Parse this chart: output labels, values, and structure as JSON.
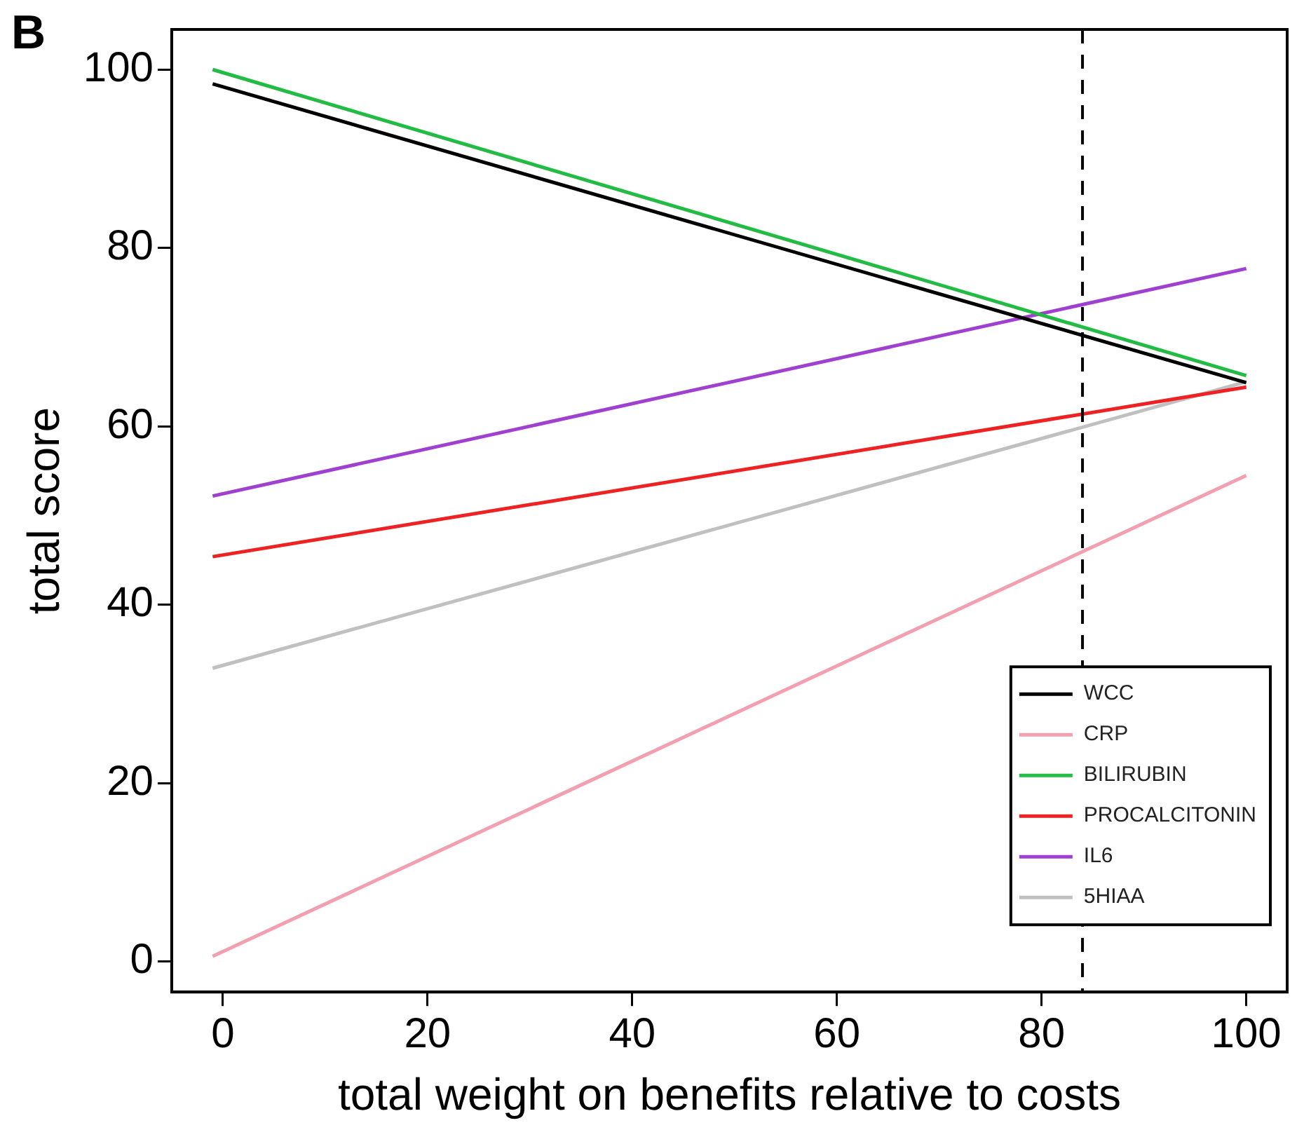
{
  "chart_data": {
    "type": "line",
    "title": "B",
    "xlabel": "total weight on benefits relative to costs",
    "ylabel": "total score",
    "xlim": [
      -5,
      104
    ],
    "ylim": [
      -3.4,
      104.5
    ],
    "xticks": [
      0,
      20,
      40,
      60,
      80,
      100
    ],
    "yticks": [
      0,
      20,
      40,
      60,
      80,
      100
    ],
    "grid": false,
    "legend": "bottom right",
    "marker": "none",
    "line_style": "solid",
    "x": [
      -1,
      100
    ],
    "ref_lines": [
      {
        "axis": "x",
        "value": 84,
        "color": "#000000",
        "line_style": "dashed"
      }
    ],
    "series": [
      {
        "name": "WCC",
        "color": "#000000",
        "values": [
          98.4,
          64.9
        ]
      },
      {
        "name": "CRP",
        "color": "#f2a0b0",
        "values": [
          0.6,
          54.5
        ]
      },
      {
        "name": "BILIRUBIN",
        "color": "#22bb44",
        "values": [
          100,
          65.7
        ]
      },
      {
        "name": "PROCALCITONIN",
        "color": "#ee2222",
        "values": [
          45.4,
          64.4
        ]
      },
      {
        "name": "IL6",
        "color": "#a040d0",
        "values": [
          52.2,
          77.7
        ]
      },
      {
        "name": "5HIAA",
        "color": "#c0c0c0",
        "values": [
          32.9,
          65
        ]
      }
    ]
  }
}
